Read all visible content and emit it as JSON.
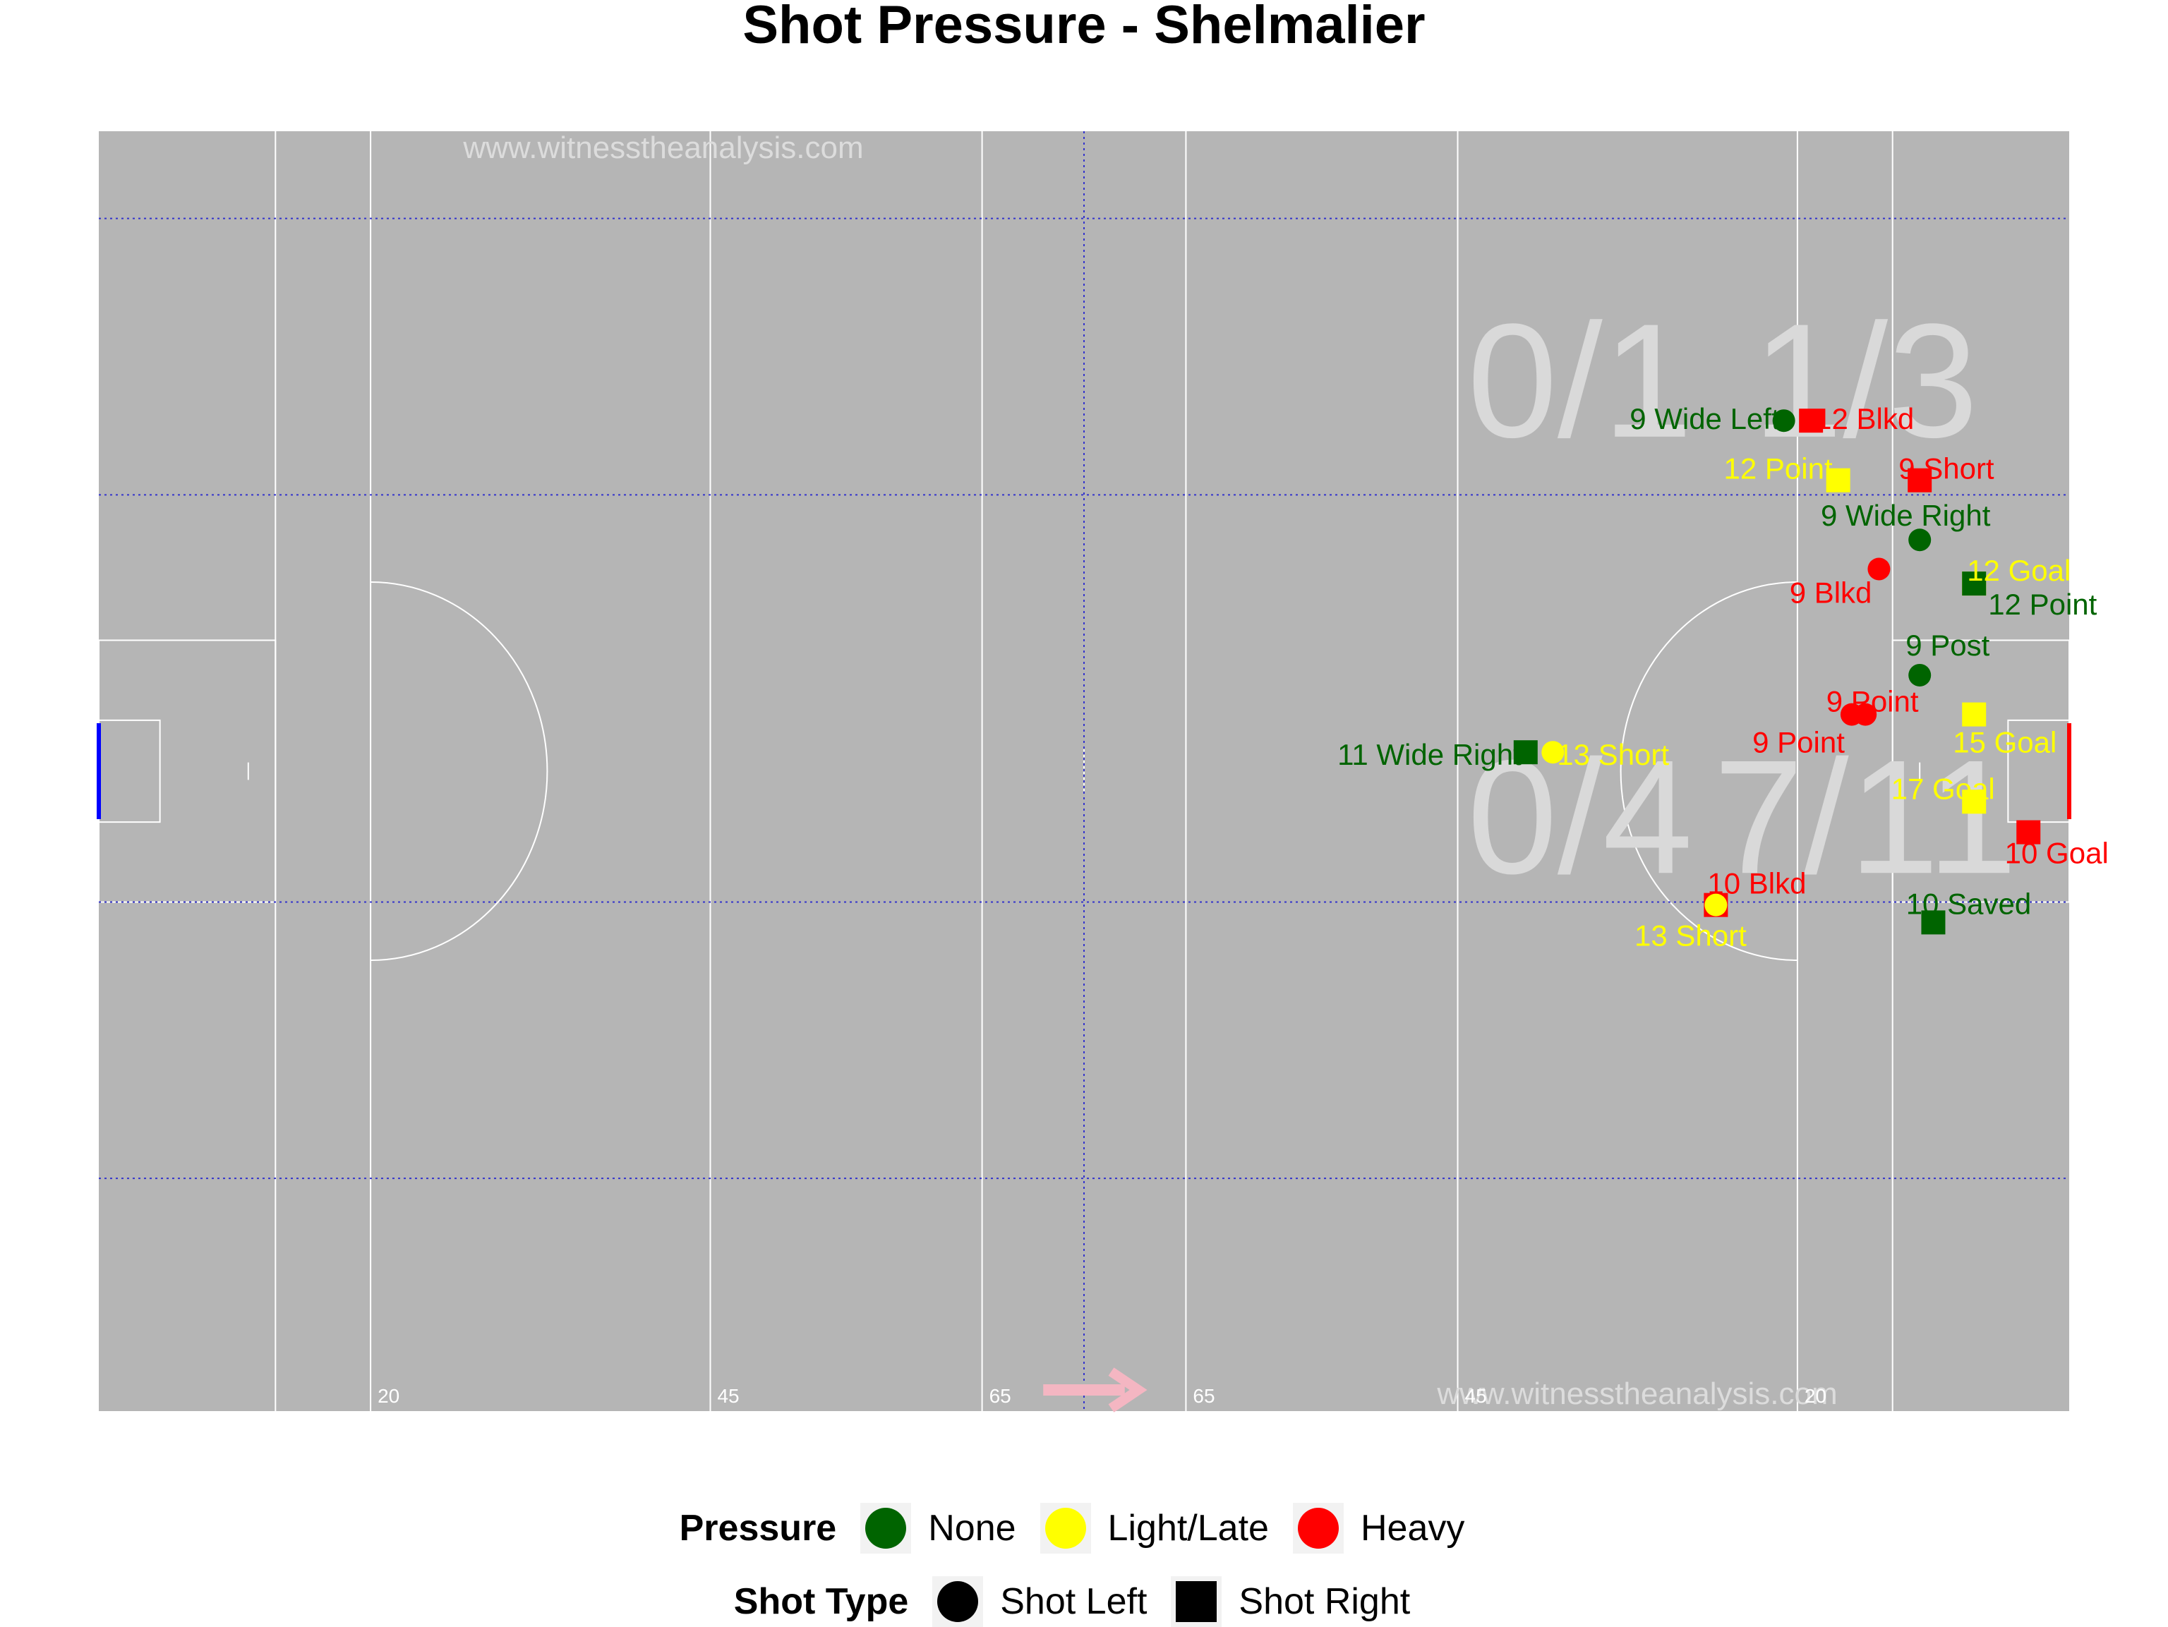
{
  "title": "Shot Pressure - Shelmalier",
  "watermark": "www.witnesstheanalysis.com",
  "colors": {
    "pitch": "#b5b5b5",
    "none": "#006400",
    "light": "#ffff00",
    "heavy": "#ff0000",
    "zone_text": "#d9d9d9",
    "arrow": "#f4b6c2",
    "guide": "#3333cc"
  },
  "pitch_lines": [
    {
      "x": 13,
      "label": ""
    },
    {
      "x": 20,
      "label": "20"
    },
    {
      "x": 45,
      "label": "45"
    },
    {
      "x": 65,
      "label": "65"
    },
    {
      "x": 80,
      "label": "65"
    },
    {
      "x": 100,
      "label": "45"
    },
    {
      "x": 125,
      "label": "20"
    },
    {
      "x": 132,
      "label": ""
    }
  ],
  "zone_labels": [
    {
      "text": "0/1",
      "x": 109,
      "y": 67
    },
    {
      "text": "1/3",
      "x": 130,
      "y": 67
    },
    {
      "text": "0/4",
      "x": 109,
      "y": 37
    },
    {
      "text": "7/11",
      "x": 130,
      "y": 37
    }
  ],
  "chart_data": {
    "type": "scatter",
    "title": "Shot Pressure - Shelmalier",
    "xlim": [
      0,
      145
    ],
    "ylim": [
      0,
      88
    ],
    "grid_y": [
      16,
      35,
      63,
      82
    ],
    "grid_x": [
      72.5
    ],
    "legend_position": "bottom",
    "legend": {
      "pressure_title": "Pressure",
      "pressure": [
        "None",
        "Light/Late",
        "Heavy"
      ],
      "shot_type_title": "Shot Type",
      "shot_type": [
        "Shot Left",
        "Shot Right"
      ]
    },
    "points": [
      {
        "x": 124,
        "y": 68.1,
        "pressure": "None",
        "shot": "Shot Left",
        "label": "9 Wide Left",
        "anchor": "end"
      },
      {
        "x": 126,
        "y": 68.1,
        "pressure": "Heavy",
        "shot": "Shot Right",
        "label": "12 Blkd",
        "anchor": "start"
      },
      {
        "x": 128,
        "y": 64,
        "pressure": "Light/Late",
        "shot": "Shot Right",
        "label": "12 Point",
        "anchor": "end"
      },
      {
        "x": 134,
        "y": 64,
        "pressure": "Heavy",
        "shot": "Shot Right",
        "label": "9 Short",
        "anchor": "start"
      },
      {
        "x": 134,
        "y": 59.9,
        "pressure": "None",
        "shot": "Shot Left",
        "label": "9 Wide Right",
        "anchor": "middle"
      },
      {
        "x": 131,
        "y": 57.9,
        "pressure": "Heavy",
        "shot": "Shot Left",
        "label": "9 Blkd",
        "anchor": "end"
      },
      {
        "x": 138,
        "y": 56.9,
        "pressure": "Light/Late",
        "shot": "Shot Right",
        "label": "12 Goal",
        "anchor": "start"
      },
      {
        "x": 138,
        "y": 56.9,
        "pressure": "None",
        "shot": "Shot Right",
        "label": "12 Point",
        "anchor": "start"
      },
      {
        "x": 134,
        "y": 50.6,
        "pressure": "None",
        "shot": "Shot Left",
        "label": "9 Post",
        "anchor": "start"
      },
      {
        "x": 130,
        "y": 47.9,
        "pressure": "Heavy",
        "shot": "Shot Left",
        "label": "9 Point",
        "anchor": "middle"
      },
      {
        "x": 129,
        "y": 47.9,
        "pressure": "Heavy",
        "shot": "Shot Left",
        "label": "9 Point",
        "anchor": "end"
      },
      {
        "x": 138,
        "y": 47.9,
        "pressure": "Light/Late",
        "shot": "Shot Right",
        "label": "15 Goal",
        "anchor": "start"
      },
      {
        "x": 105,
        "y": 45.3,
        "pressure": "None",
        "shot": "Shot Right",
        "label": "11 Wide Right",
        "anchor": "end"
      },
      {
        "x": 107,
        "y": 45.3,
        "pressure": "Light/Late",
        "shot": "Shot Left",
        "label": "13 Short",
        "anchor": "start"
      },
      {
        "x": 138,
        "y": 41.9,
        "pressure": "Light/Late",
        "shot": "Shot Right",
        "label": "17 Goal",
        "anchor": "middle"
      },
      {
        "x": 142,
        "y": 39.8,
        "pressure": "Heavy",
        "shot": "Shot Right",
        "label": "10 Goal",
        "anchor": "middle"
      },
      {
        "x": 119,
        "y": 34.8,
        "pressure": "Heavy",
        "shot": "Shot Right",
        "label": "10 Blkd",
        "anchor": "start"
      },
      {
        "x": 119,
        "y": 34.8,
        "pressure": "Light/Late",
        "shot": "Shot Left",
        "label": "13 Short",
        "anchor": "middle"
      },
      {
        "x": 135,
        "y": 33.6,
        "pressure": "None",
        "shot": "Shot Right",
        "label": "10 Saved",
        "anchor": "middle"
      }
    ]
  }
}
